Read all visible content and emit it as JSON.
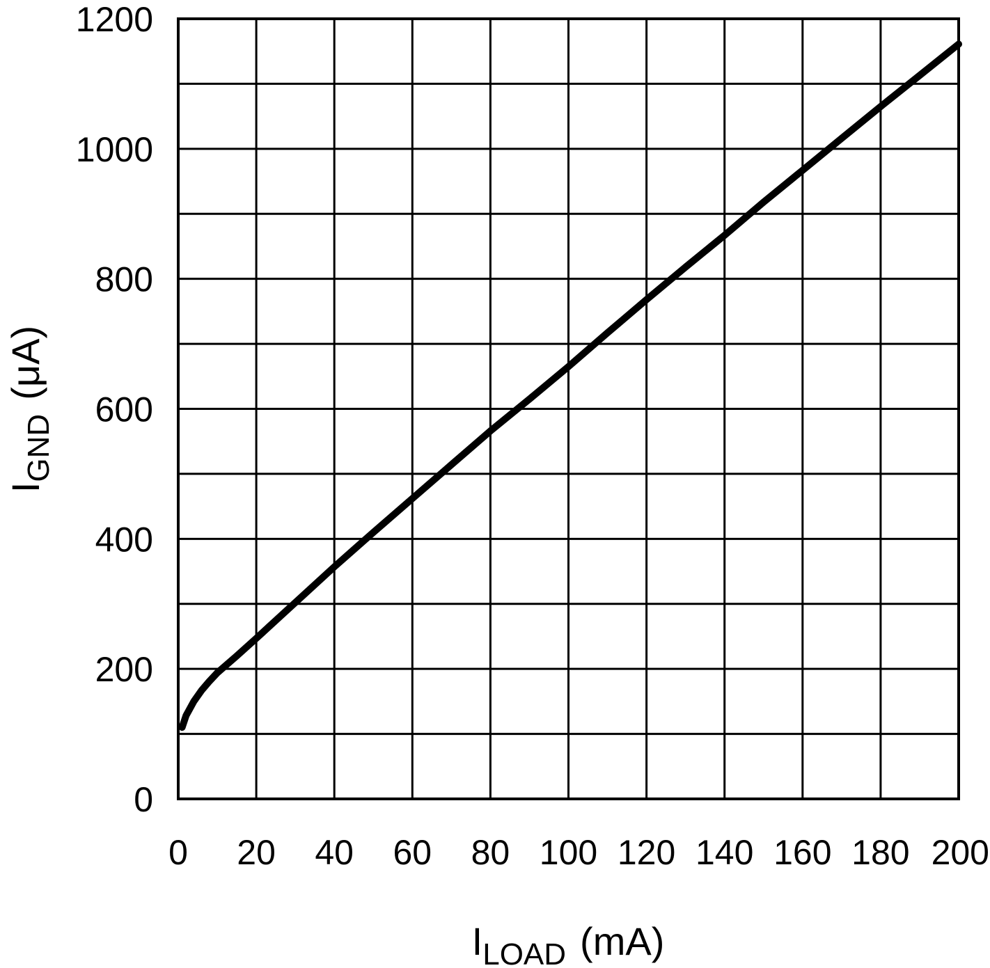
{
  "chart_data": {
    "type": "line",
    "xlabel": {
      "main": "I",
      "sub": "LOAD",
      "unit": "(mA)"
    },
    "ylabel": {
      "main": "I",
      "sub": "GND",
      "unit": "(μA)"
    },
    "xlim": [
      0,
      200
    ],
    "ylim": [
      0,
      1200
    ],
    "xticks": [
      0,
      20,
      40,
      60,
      80,
      100,
      120,
      140,
      160,
      180,
      200
    ],
    "yticks": [
      0,
      200,
      400,
      600,
      800,
      1000,
      1200
    ],
    "x_minor_step": 20,
    "y_minor_step": 100,
    "grid": true,
    "series": [
      {
        "x": [
          1,
          2,
          4,
          6,
          8,
          10,
          15,
          20,
          30,
          40,
          50,
          60,
          70,
          80,
          90,
          100,
          110,
          120,
          130,
          140,
          150,
          160,
          170,
          180,
          190,
          200
        ],
        "y": [
          110,
          128,
          150,
          167,
          181,
          194,
          220,
          247,
          302,
          357,
          410,
          462,
          514,
          566,
          615,
          665,
          717,
          768,
          818,
          867,
          918,
          967,
          1016,
          1065,
          1113,
          1161
        ]
      }
    ]
  }
}
